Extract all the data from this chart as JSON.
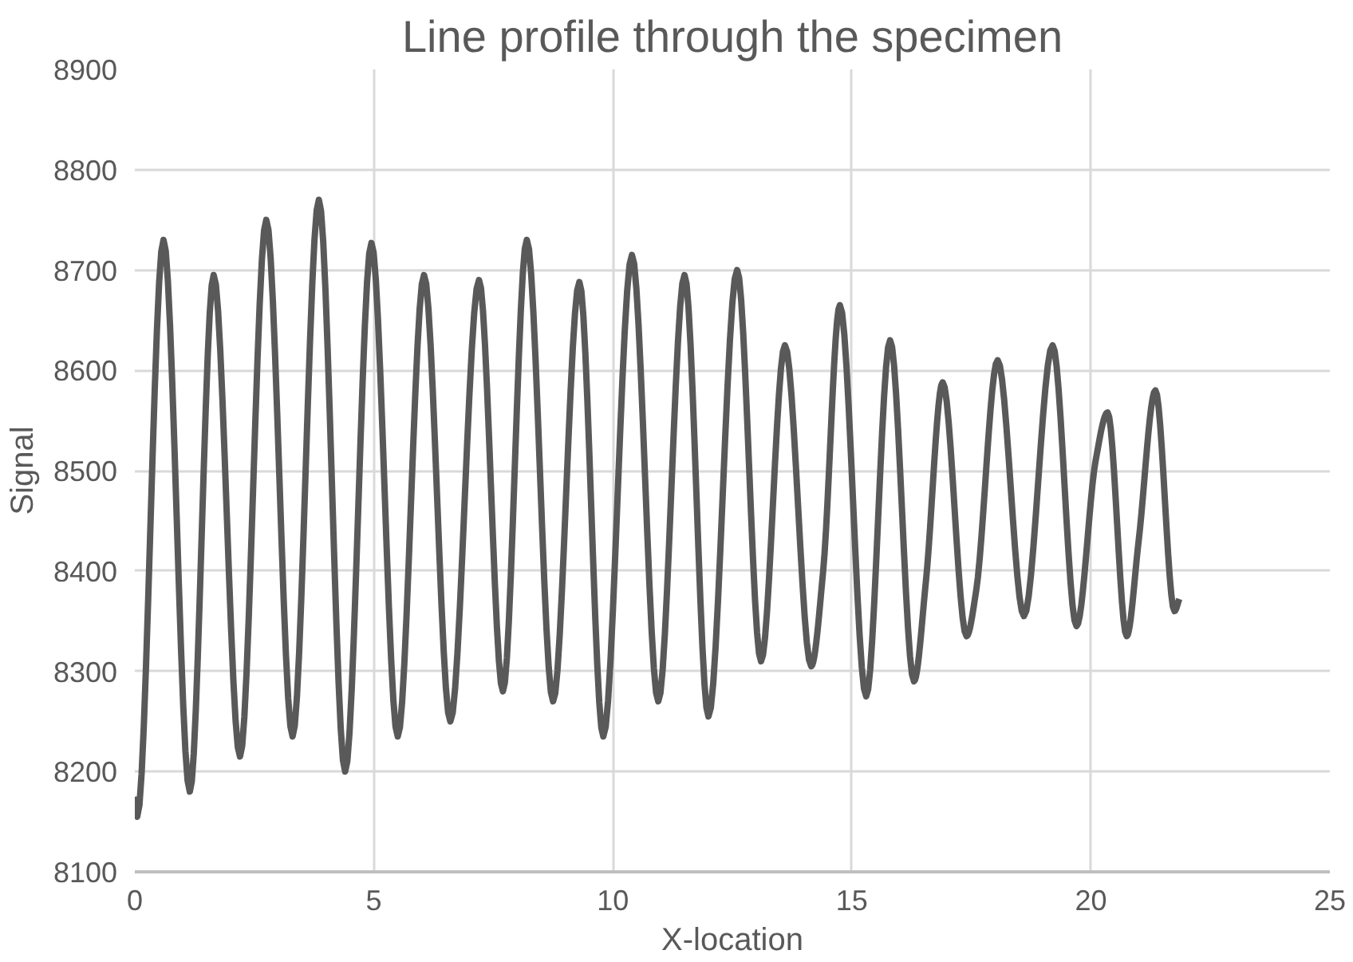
{
  "chart_data": {
    "type": "line",
    "title": "Line profile through the specimen",
    "xlabel": "X-location",
    "ylabel": "Signal",
    "xlim": [
      0,
      25
    ],
    "xticks": [
      0,
      5,
      10,
      15,
      20,
      25
    ],
    "ylim": [
      8100,
      8900
    ],
    "yticks": [
      8100,
      8200,
      8300,
      8400,
      8500,
      8600,
      8700,
      8800,
      8900
    ],
    "grid": true,
    "marker": "none",
    "line_style": "solid",
    "series": [
      {
        "color": "#595959",
        "x": [
          0,
          0.05,
          0.6,
          1.15,
          1.65,
          2.2,
          2.75,
          3.3,
          3.85,
          4.4,
          4.95,
          5.5,
          6.05,
          6.6,
          7.2,
          7.7,
          8.2,
          8.75,
          9.3,
          9.8,
          10.4,
          10.95,
          11.5,
          12.0,
          12.6,
          13.1,
          13.6,
          14.15,
          14.4,
          14.75,
          15.3,
          15.8,
          16.3,
          16.55,
          16.9,
          17.4,
          17.6,
          18.05,
          18.6,
          19.2,
          19.7,
          20.1,
          20.35,
          20.75,
          21.0,
          21.35,
          21.75,
          21.85
        ],
        "values": [
          8175,
          8155,
          8730,
          8180,
          8695,
          8215,
          8750,
          8235,
          8770,
          8200,
          8727,
          8235,
          8695,
          8250,
          8690,
          8280,
          8730,
          8270,
          8688,
          8235,
          8715,
          8270,
          8695,
          8255,
          8700,
          8310,
          8625,
          8305,
          8400,
          8665,
          8275,
          8630,
          8290,
          8390,
          8588,
          8335,
          8380,
          8610,
          8355,
          8625,
          8345,
          8510,
          8558,
          8335,
          8430,
          8580,
          8360,
          8372
        ]
      }
    ]
  }
}
